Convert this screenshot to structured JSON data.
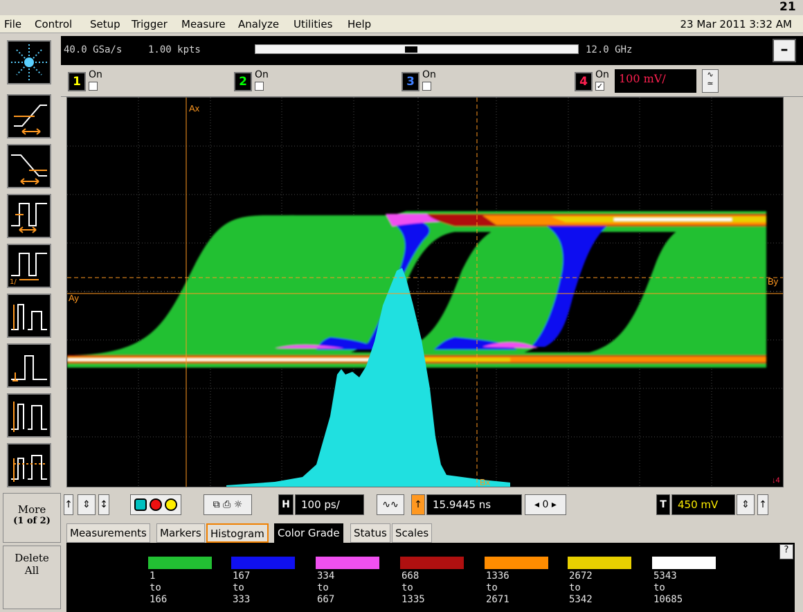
{
  "page_number": "21",
  "menu": {
    "items": [
      "File",
      "Control",
      "Setup",
      "Trigger",
      "Measure",
      "Analyze",
      "Utilities",
      "Help"
    ],
    "datetime": "23 Mar 2011  3:32 AM"
  },
  "infobar": {
    "sample_rate": "40.0 GSa/s",
    "points": "1.00 kpts",
    "bandwidth": "12.0 GHz",
    "min_label": "–"
  },
  "channels": [
    {
      "num": "1",
      "on_label": "On",
      "checked": false,
      "color": "#ffff00"
    },
    {
      "num": "2",
      "on_label": "On",
      "checked": false,
      "color": "#00ff00"
    },
    {
      "num": "3",
      "on_label": "On",
      "checked": false,
      "color": "#4080ff"
    },
    {
      "num": "4",
      "on_label": "On",
      "checked": true,
      "color": "#ff2050"
    }
  ],
  "ch4_scale": "100 mV/",
  "markers": {
    "ax": "Ax",
    "ay": "Ay",
    "bx": "Bx",
    "by": "By"
  },
  "side": {
    "more": "More",
    "more_sub": "(1 of 2)",
    "delete": "Delete",
    "delete_sub": "All"
  },
  "controls": {
    "h_label": "H",
    "timebase": "100 ps/",
    "delay": "15.9445 ns",
    "nav_value": "0",
    "trigger_label": "T",
    "trigger_level": "450 mV"
  },
  "tabs": [
    {
      "label": "Measurements",
      "state": "normal"
    },
    {
      "label": "Markers",
      "state": "normal"
    },
    {
      "label": "Histogram",
      "state": "selected"
    },
    {
      "label": "Color Grade",
      "state": "active"
    },
    {
      "label": "Status",
      "state": "normal"
    },
    {
      "label": "Scales",
      "state": "normal"
    }
  ],
  "color_grade": [
    {
      "color": "#22c033",
      "from": "1",
      "to_word": "to",
      "to": "166"
    },
    {
      "color": "#1010f0",
      "from": "167",
      "to_word": "to",
      "to": "333"
    },
    {
      "color": "#f050f0",
      "from": "334",
      "to_word": "to",
      "to": "667"
    },
    {
      "color": "#b01010",
      "from": "668",
      "to_word": "to",
      "to": "1335"
    },
    {
      "color": "#ff8c00",
      "from": "1336",
      "to_word": "to",
      "to": "2671"
    },
    {
      "color": "#e8d000",
      "from": "2672",
      "to_word": "to",
      "to": "5342"
    },
    {
      "color": "#ffffff",
      "from": "5343",
      "to_word": "to",
      "to": "10685"
    }
  ],
  "colors": {
    "histogram": "#20e0e0",
    "marker": "#ff9820",
    "grid": "#505050"
  }
}
